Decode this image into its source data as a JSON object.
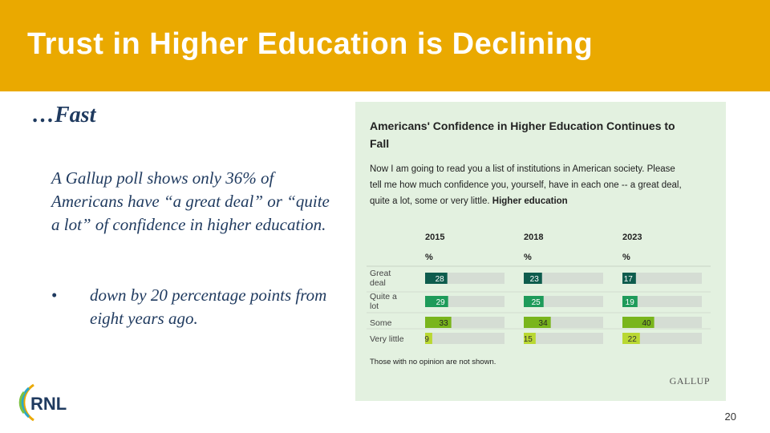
{
  "slide": {
    "title": "Trust in Higher Education is Declining",
    "subhead": "…Fast",
    "body": "A Gallup poll shows only 36% of Americans have “a great deal” or “quite a lot” of confidence in higher education.",
    "bullet_marker": "•",
    "bullet": "down by 20 percentage points from eight years ago.",
    "page_number": "20",
    "logo_text": "RNL"
  },
  "chart_data": {
    "type": "bar",
    "orientation": "horizontal",
    "title_line1": "Americans' Confidence in Higher Education Continues to",
    "title_line2": "Fall",
    "question_line1": "Now I am going to read you a list of institutions in American society. Please",
    "question_line2": "tell me how much confidence you, yourself, have in each one -- a great deal,",
    "question_line3_prefix": "quite a lot, some or very little.",
    "question_line3_bold": "Higher education",
    "unit": "%",
    "footnote": "Those with no opinion are not shown.",
    "source": "GALLUP",
    "xlim": [
      0,
      100
    ],
    "years": [
      "2015",
      "2018",
      "2023"
    ],
    "categories": [
      {
        "label_lines": [
          "Great",
          "deal"
        ],
        "color": "#0e5c4d",
        "values": [
          28,
          23,
          17
        ]
      },
      {
        "label_lines": [
          "Quite a",
          "lot"
        ],
        "color": "#1e9b5a",
        "values": [
          29,
          25,
          19
        ]
      },
      {
        "label_lines": [
          "Some"
        ],
        "color": "#79b51c",
        "values": [
          33,
          34,
          40
        ]
      },
      {
        "label_lines": [
          "Very little"
        ],
        "color": "#b9d832",
        "values": [
          9,
          15,
          22
        ]
      }
    ],
    "track_color": "#d5ddd4"
  }
}
